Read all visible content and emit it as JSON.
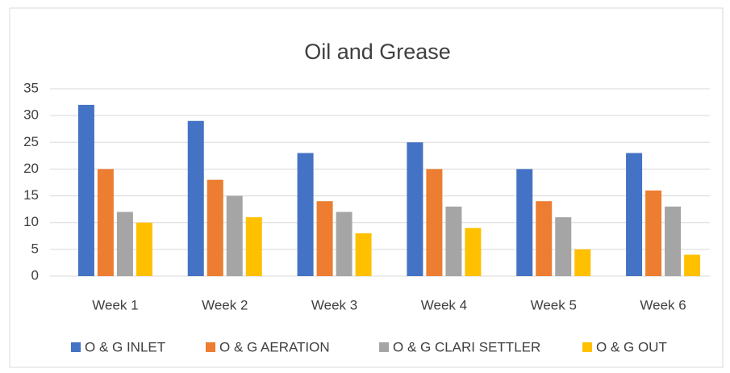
{
  "chart_data": {
    "type": "bar",
    "title": "Oil and Grease",
    "categories": [
      "Week 1",
      "Week 2",
      "Week 3",
      "Week 4",
      "Week 5",
      "Week 6"
    ],
    "series": [
      {
        "name": "O & G INLET",
        "color": "#4472c4",
        "values": [
          32,
          29,
          23,
          25,
          20,
          23
        ]
      },
      {
        "name": "O & G AERATION",
        "color": "#ed7d31",
        "values": [
          20,
          18,
          14,
          20,
          14,
          16
        ]
      },
      {
        "name": "O & G CLARI SETTLER",
        "color": "#a5a5a5",
        "values": [
          12,
          15,
          12,
          13,
          11,
          13
        ]
      },
      {
        "name": "O & G OUT",
        "color": "#ffc000",
        "values": [
          10,
          11,
          8,
          9,
          5,
          4
        ]
      }
    ],
    "ylim": [
      0,
      35
    ],
    "yticks": [
      0,
      5,
      10,
      15,
      20,
      25,
      30,
      35
    ],
    "grid": true,
    "legend": "bottom"
  }
}
